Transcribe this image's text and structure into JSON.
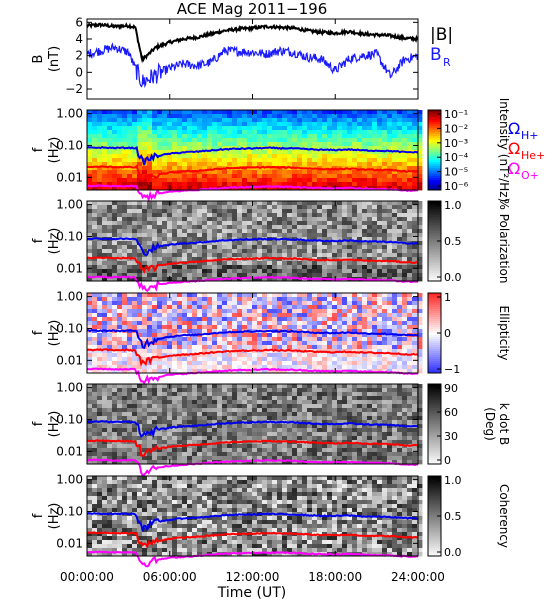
{
  "title": "ACE Mag 2011−196",
  "xlabel": "Time (UT)",
  "x_ticks": [
    "00:00:00",
    "06:00:00",
    "12:00:00",
    "18:00:00",
    "24:00:00"
  ],
  "colors": {
    "B_total": "#000000",
    "B_R": "#1a1aff",
    "H_gyro": "#0000ee",
    "He_gyro": "#ff0000",
    "O_gyro": "#ff00ff"
  },
  "chart_data": [
    {
      "type": "line",
      "panel": "field",
      "ylabel": "B",
      "yunit": "(nT)",
      "ylim": [
        -3.2,
        6.4
      ],
      "y_ticks": [
        "6",
        "4",
        "2",
        "0",
        "−2"
      ],
      "x_hours": [
        0,
        1,
        2,
        3,
        3.5,
        4,
        5,
        6,
        7,
        8,
        9,
        10,
        11,
        12,
        13,
        14,
        15,
        16,
        17,
        18,
        19,
        20,
        21,
        22,
        23,
        24
      ],
      "series": [
        {
          "name": "|B|",
          "values": [
            5.6,
            5.7,
            5.5,
            5.6,
            5.4,
            1.5,
            3.0,
            3.6,
            4.0,
            4.2,
            4.6,
            5.0,
            5.2,
            5.3,
            5.5,
            5.4,
            5.3,
            5.0,
            4.8,
            4.7,
            4.9,
            4.6,
            4.5,
            4.4,
            4.1,
            4.0
          ]
        },
        {
          "name": "B_R",
          "values": [
            2.2,
            2.6,
            3.0,
            2.4,
            0.5,
            -1.2,
            -0.3,
            0.5,
            1.0,
            0.8,
            1.2,
            2.6,
            2.5,
            2.4,
            2.2,
            2.6,
            2.4,
            1.8,
            1.6,
            0.2,
            1.6,
            2.0,
            2.2,
            -0.5,
            1.5,
            2.0
          ]
        }
      ],
      "legend": [
        "|B|",
        "B"
      ],
      "legend_subscript": "R"
    },
    {
      "type": "heatmap",
      "panel": "intensity",
      "ylabel": "f",
      "yunit": "(Hz)",
      "y_ticks": [
        "1.00",
        "0.10",
        "0.01"
      ],
      "colorbar_label": "Intensity (nT²/Hz)",
      "colorbar_ticks": [
        "10⁻¹",
        "10⁻²",
        "10⁻³",
        "10⁻⁴",
        "10⁻⁵",
        "10⁻⁶"
      ],
      "colorbar_range": [
        -6.5,
        -0.5
      ],
      "gyro_legend": [
        {
          "symbol": "Ω",
          "sub": "H+"
        },
        {
          "symbol": "Ω",
          "sub": "He+"
        },
        {
          "symbol": "Ω",
          "sub": "O+"
        }
      ]
    },
    {
      "type": "heatmap",
      "panel": "polarization",
      "ylabel": "f",
      "yunit": "(Hz)",
      "y_ticks": [
        "1.00",
        "0.10",
        "0.01"
      ],
      "colorbar_label": "% Polarization",
      "colorbar_ticks": [
        "1.0",
        "0.5",
        "0.0"
      ]
    },
    {
      "type": "heatmap",
      "panel": "ellipticity",
      "ylabel": "f",
      "yunit": "(Hz)",
      "y_ticks": [
        "1.00",
        "0.10",
        "0.01"
      ],
      "colorbar_label": "Ellipticity",
      "colorbar_ticks": [
        "1",
        "0",
        "−1"
      ]
    },
    {
      "type": "heatmap",
      "panel": "kdotb",
      "ylabel": "f",
      "yunit": "(Hz)",
      "y_ticks": [
        "1.00",
        "0.10",
        "0.01"
      ],
      "colorbar_label": "k dot B",
      "colorbar_unit": "(Deg)",
      "colorbar_ticks": [
        "90",
        "60",
        "30",
        "0"
      ]
    },
    {
      "type": "heatmap",
      "panel": "coherency",
      "ylabel": "f",
      "yunit": "(Hz)",
      "y_ticks": [
        "1.00",
        "0.10",
        "0.01"
      ],
      "colorbar_label": "Coherency",
      "colorbar_ticks": [
        "1.0",
        "0.5",
        "0.0"
      ]
    }
  ],
  "gyrofrequency_hz": {
    "x_hours": [
      0,
      1,
      2,
      3,
      3.5,
      4,
      5,
      6,
      7,
      8,
      9,
      10,
      11,
      12,
      13,
      14,
      15,
      16,
      17,
      18,
      19,
      20,
      21,
      22,
      23,
      24
    ],
    "H+": [
      0.085,
      0.086,
      0.084,
      0.085,
      0.083,
      0.03,
      0.046,
      0.055,
      0.061,
      0.064,
      0.07,
      0.076,
      0.079,
      0.081,
      0.084,
      0.082,
      0.081,
      0.076,
      0.073,
      0.072,
      0.075,
      0.07,
      0.069,
      0.067,
      0.062,
      0.061
    ],
    "He+": [
      0.021,
      0.0215,
      0.021,
      0.021,
      0.0205,
      0.008,
      0.0115,
      0.014,
      0.0152,
      0.016,
      0.0175,
      0.019,
      0.0198,
      0.0202,
      0.021,
      0.0205,
      0.0202,
      0.019,
      0.0183,
      0.018,
      0.0187,
      0.0175,
      0.0172,
      0.0168,
      0.0156,
      0.0152
    ],
    "O+": [
      0.0053,
      0.0054,
      0.0052,
      0.0053,
      0.0052,
      0.0022,
      0.003,
      0.0035,
      0.0038,
      0.004,
      0.0044,
      0.0047,
      0.0049,
      0.005,
      0.0052,
      0.0051,
      0.005,
      0.0047,
      0.0046,
      0.0045,
      0.0047,
      0.0044,
      0.0043,
      0.0042,
      0.0039,
      0.0038
    ]
  }
}
